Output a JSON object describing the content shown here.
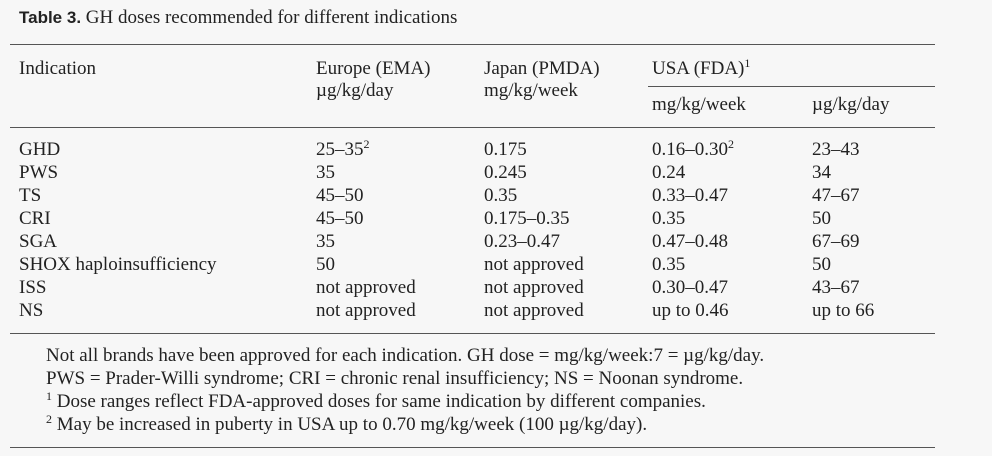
{
  "title": {
    "label": "Table 3.",
    "text": "GH doses recommended for different indications"
  },
  "header": {
    "indication": "Indication",
    "europe": [
      "Europe (EMA)",
      "µg/kg/day"
    ],
    "japan": [
      "Japan (PMDA)",
      "mg/kg/week"
    ],
    "usa": {
      "text": "USA (FDA)",
      "sup": "1"
    },
    "usa_units": [
      "mg/kg/week",
      "µg/kg/day"
    ]
  },
  "table": {
    "rows": [
      [
        "GHD",
        {
          "text": "25–35",
          "sup": "2"
        },
        "0.175",
        {
          "text": "0.16–0.30",
          "sup": "2"
        },
        "23–43"
      ],
      [
        "PWS",
        "35",
        "0.245",
        "0.24",
        "34"
      ],
      [
        "TS",
        "45–50",
        "0.35",
        "0.33–0.47",
        "47–67"
      ],
      [
        "CRI",
        "45–50",
        "0.175–0.35",
        "0.35",
        "50"
      ],
      [
        "SGA",
        "35",
        "0.23–0.47",
        "0.47–0.48",
        "67–69"
      ],
      [
        "SHOX haploinsufficiency",
        "50",
        "not approved",
        "0.35",
        "50"
      ],
      [
        "ISS",
        "not approved",
        "not approved",
        "0.30–0.47",
        "43–67"
      ],
      [
        "NS",
        "not approved",
        "not approved",
        "up to 0.46",
        "up to 66"
      ]
    ]
  },
  "footnotes": [
    "Not all brands have been approved for each indication. GH dose = mg/kg/week:7 = µg/kg/day.",
    "PWS = Prader-Willi syndrome; CRI = chronic renal insufficiency; NS = Noonan syndrome.",
    {
      "sup": "1",
      "text": "Dose ranges reflect FDA-approved doses for same indication by different companies."
    },
    {
      "sup": "2",
      "text": "May be increased in puberty in USA up to 0.70 mg/kg/week (100 µg/kg/day)."
    }
  ]
}
